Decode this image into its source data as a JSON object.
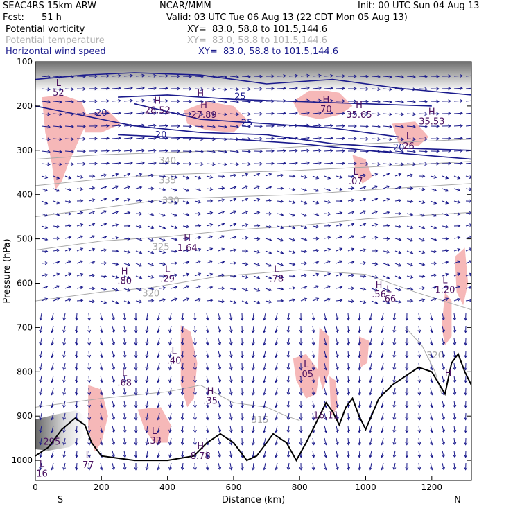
{
  "header": {
    "model": "SEAC4RS 15km ARW",
    "org": "NCAR/MMM",
    "init": "Init: 00 UTC Sun 04 Aug 13",
    "fcst_label": "Fcst:",
    "fcst_value": "51 h",
    "valid": "Valid: 03 UTC Tue 06 Aug 13 (22 CDT Mon 05 Aug 13)",
    "fields": [
      {
        "name": "Potential vorticity",
        "xy": "XY=  83.0, 58.8 to 101.5,144.6",
        "color": "#000000"
      },
      {
        "name": "Potential temperature",
        "xy": "XY=  83.0, 58.8 to 101.5,144.6",
        "color": "#b0b0b0"
      },
      {
        "name": "Horizontal wind speed",
        "xy": "XY=  83.0, 58.8 to 101.5,144.6",
        "color": "#1a1a8c"
      }
    ]
  },
  "colors": {
    "pv_shade": "#f6b8b8",
    "wind": "#1a1a8c",
    "theta": "#a8a8a8",
    "terrain": "#000000",
    "pv_contour": "#4a1060"
  },
  "chart_data": {
    "type": "cross-section",
    "xlabel": "Distance (km)",
    "ylabel": "Pressure (hPa)",
    "x_range": [
      0,
      1320
    ],
    "y_range": [
      100,
      1050
    ],
    "x_ticks": [
      0,
      200,
      400,
      600,
      800,
      1000,
      1200
    ],
    "y_ticks": [
      100,
      200,
      300,
      400,
      500,
      600,
      700,
      800,
      900,
      1000
    ],
    "x_end_labels": {
      "left": "S",
      "right": "N"
    },
    "theta_contours": [
      {
        "label": "340",
        "points": [
          [
            0,
            320
          ],
          [
            200,
            310
          ],
          [
            400,
            305
          ],
          [
            600,
            300
          ],
          [
            800,
            292
          ],
          [
            1000,
            285
          ],
          [
            1320,
            275
          ]
        ],
        "label_at": [
          400,
          330
        ]
      },
      {
        "label": "335",
        "points": [
          [
            0,
            380
          ],
          [
            200,
            365
          ],
          [
            400,
            355
          ],
          [
            600,
            350
          ],
          [
            800,
            345
          ],
          [
            1000,
            338
          ],
          [
            1320,
            325
          ]
        ],
        "label_at": [
          400,
          375
        ]
      },
      {
        "label": "330",
        "points": [
          [
            0,
            450
          ],
          [
            200,
            430
          ],
          [
            400,
            410
          ],
          [
            600,
            405
          ],
          [
            800,
            400
          ],
          [
            1000,
            390
          ],
          [
            1320,
            375
          ]
        ],
        "label_at": [
          410,
          420
        ]
      },
      {
        "label": "325",
        "points": [
          [
            0,
            525
          ],
          [
            200,
            505
          ],
          [
            400,
            495
          ],
          [
            600,
            480
          ],
          [
            800,
            470
          ],
          [
            1000,
            455
          ],
          [
            1320,
            440
          ]
        ],
        "label_at": [
          380,
          525
        ]
      },
      {
        "label": "320",
        "points": [
          [
            0,
            640
          ],
          [
            200,
            620
          ],
          [
            350,
            610
          ],
          [
            550,
            585
          ],
          [
            800,
            570
          ],
          [
            1000,
            580
          ],
          [
            1150,
            620
          ],
          [
            1320,
            660
          ]
        ],
        "label_at": [
          350,
          630
        ]
      },
      {
        "label": "315",
        "points": [
          [
            0,
            880
          ],
          [
            200,
            860
          ],
          [
            400,
            845
          ],
          [
            500,
            830
          ],
          [
            600,
            870
          ],
          [
            700,
            880
          ],
          [
            760,
            900
          ],
          [
            800,
            910
          ]
        ],
        "label_at": [
          680,
          915
        ]
      },
      {
        "label": "320",
        "points": [
          [
            1120,
            700
          ],
          [
            1170,
            740
          ],
          [
            1210,
            800
          ],
          [
            1230,
            850
          ]
        ],
        "label_at": [
          1210,
          770
        ]
      }
    ],
    "wind_speed_contours": [
      {
        "label": "20",
        "points": [
          [
            0,
            200
          ],
          [
            100,
            215
          ],
          [
            200,
            230
          ],
          [
            300,
            245
          ],
          [
            500,
            260
          ],
          [
            700,
            265
          ],
          [
            900,
            285
          ],
          [
            1100,
            295
          ],
          [
            1320,
            300
          ]
        ],
        "label_at": [
          200,
          222
        ]
      },
      {
        "label": "20",
        "points": [
          [
            250,
            265
          ],
          [
            400,
            270
          ],
          [
            600,
            275
          ],
          [
            800,
            285
          ],
          [
            1000,
            300
          ],
          [
            1320,
            320
          ]
        ],
        "label_at": [
          380,
          272
        ]
      },
      {
        "label": "25",
        "points": [
          [
            250,
            180
          ],
          [
            400,
            175
          ],
          [
            600,
            185
          ],
          [
            800,
            190
          ],
          [
            1000,
            195
          ],
          [
            1200,
            200
          ]
        ],
        "label_at": [
          620,
          185
        ]
      },
      {
        "label": "25",
        "points": [
          [
            300,
            195
          ],
          [
            500,
            230
          ],
          [
            700,
            240
          ],
          [
            900,
            250
          ],
          [
            1100,
            270
          ]
        ],
        "label_at": [
          640,
          245
        ]
      },
      {
        "label": "20",
        "points": [
          [
            0,
            140
          ],
          [
            150,
            130
          ],
          [
            300,
            125
          ],
          [
            500,
            130
          ],
          [
            700,
            150
          ],
          [
            900,
            140
          ],
          [
            1100,
            160
          ],
          [
            1320,
            175
          ]
        ],
        "label_at": [
          1100,
          300
        ]
      }
    ],
    "pv_shaded_regions": [
      {
        "points": [
          [
            20,
            180
          ],
          [
            80,
            175
          ],
          [
            140,
            190
          ],
          [
            160,
            230
          ],
          [
            130,
            280
          ],
          [
            100,
            330
          ],
          [
            80,
            370
          ],
          [
            60,
            390
          ],
          [
            50,
            330
          ],
          [
            30,
            260
          ]
        ]
      },
      {
        "points": [
          [
            140,
            220
          ],
          [
            220,
            210
          ],
          [
            260,
            240
          ],
          [
            200,
            260
          ],
          [
            150,
            260
          ]
        ]
      },
      {
        "points": [
          [
            450,
            210
          ],
          [
            520,
            190
          ],
          [
            600,
            200
          ],
          [
            640,
            230
          ],
          [
            600,
            260
          ],
          [
            520,
            255
          ],
          [
            460,
            240
          ]
        ]
      },
      {
        "points": [
          [
            780,
            190
          ],
          [
            840,
            160
          ],
          [
            920,
            170
          ],
          [
            960,
            200
          ],
          [
            920,
            220
          ],
          [
            860,
            230
          ],
          [
            800,
            220
          ]
        ]
      },
      {
        "points": [
          [
            1080,
            240
          ],
          [
            1150,
            235
          ],
          [
            1190,
            270
          ],
          [
            1160,
            290
          ],
          [
            1100,
            285
          ]
        ]
      },
      {
        "points": [
          [
            960,
            310
          ],
          [
            1000,
            320
          ],
          [
            1020,
            360
          ],
          [
            990,
            375
          ],
          [
            970,
            350
          ]
        ]
      },
      {
        "points": [
          [
            1270,
            540
          ],
          [
            1300,
            520
          ],
          [
            1310,
            600
          ],
          [
            1295,
            650
          ],
          [
            1275,
            620
          ]
        ]
      },
      {
        "points": [
          [
            1240,
            620
          ],
          [
            1260,
            640
          ],
          [
            1260,
            720
          ],
          [
            1240,
            740
          ],
          [
            1230,
            700
          ]
        ]
      },
      {
        "points": [
          [
            440,
            695
          ],
          [
            470,
            710
          ],
          [
            490,
            780
          ],
          [
            480,
            860
          ],
          [
            460,
            880
          ],
          [
            440,
            830
          ]
        ]
      },
      {
        "points": [
          [
            160,
            830
          ],
          [
            200,
            840
          ],
          [
            220,
            900
          ],
          [
            200,
            960
          ],
          [
            180,
            980
          ],
          [
            160,
            930
          ]
        ]
      },
      {
        "points": [
          [
            310,
            885
          ],
          [
            380,
            880
          ],
          [
            410,
            920
          ],
          [
            400,
            960
          ],
          [
            360,
            960
          ],
          [
            330,
            930
          ]
        ]
      },
      {
        "points": [
          [
            780,
            770
          ],
          [
            820,
            760
          ],
          [
            860,
            800
          ],
          [
            850,
            850
          ],
          [
            820,
            860
          ],
          [
            790,
            820
          ]
        ]
      },
      {
        "points": [
          [
            860,
            700
          ],
          [
            890,
            720
          ],
          [
            890,
            800
          ],
          [
            870,
            840
          ],
          [
            855,
            800
          ]
        ]
      },
      {
        "points": [
          [
            980,
            720
          ],
          [
            1010,
            730
          ],
          [
            1005,
            780
          ],
          [
            985,
            790
          ]
        ]
      },
      {
        "points": [
          [
            890,
            810
          ],
          [
            910,
            820
          ],
          [
            915,
            880
          ],
          [
            895,
            900
          ]
        ]
      }
    ],
    "terrain": [
      [
        0,
        990
      ],
      [
        40,
        970
      ],
      [
        80,
        930
      ],
      [
        120,
        905
      ],
      [
        150,
        920
      ],
      [
        170,
        960
      ],
      [
        200,
        990
      ],
      [
        300,
        1000
      ],
      [
        400,
        1000
      ],
      [
        480,
        990
      ],
      [
        520,
        960
      ],
      [
        560,
        940
      ],
      [
        600,
        960
      ],
      [
        640,
        1000
      ],
      [
        670,
        990
      ],
      [
        700,
        960
      ],
      [
        720,
        940
      ],
      [
        760,
        960
      ],
      [
        790,
        1000
      ],
      [
        820,
        960
      ],
      [
        860,
        900
      ],
      [
        880,
        870
      ],
      [
        900,
        890
      ],
      [
        920,
        920
      ],
      [
        940,
        880
      ],
      [
        960,
        860
      ],
      [
        980,
        900
      ],
      [
        1000,
        930
      ],
      [
        1040,
        860
      ],
      [
        1080,
        830
      ],
      [
        1120,
        810
      ],
      [
        1160,
        790
      ],
      [
        1200,
        800
      ],
      [
        1240,
        850
      ],
      [
        1260,
        780
      ],
      [
        1280,
        760
      ],
      [
        1300,
        800
      ],
      [
        1320,
        830
      ]
    ],
    "pv_maxima": [
      {
        "type": "H",
        "value": "",
        "at": [
          500,
          178
        ]
      },
      {
        "type": "H",
        "value": "28.52",
        "at": [
          370,
          195
        ]
      },
      {
        "type": "H",
        "value": "27.89",
        "at": [
          510,
          205
        ]
      },
      {
        "type": "H",
        "value": "70",
        "at": [
          880,
          192
        ]
      },
      {
        "type": "H",
        "value": "35.65",
        "at": [
          980,
          205
        ]
      },
      {
        "type": "H",
        "value": "35.53",
        "at": [
          1200,
          220
        ]
      },
      {
        "type": "L",
        "value": "52",
        "at": [
          70,
          155
        ]
      },
      {
        "type": "L",
        "value": "26",
        "at": [
          1130,
          275
        ]
      },
      {
        "type": "L",
        "value": ".07",
        "at": [
          970,
          355
        ]
      },
      {
        "type": "H",
        "value": "1.64",
        "at": [
          460,
          505
        ]
      },
      {
        "type": "H",
        "value": ".80",
        "at": [
          270,
          580
        ]
      },
      {
        "type": "L",
        "value": ".29",
        "at": [
          400,
          575
        ]
      },
      {
        "type": "L",
        "value": ".78",
        "at": [
          730,
          575
        ]
      },
      {
        "type": "H",
        "value": ".56",
        "at": [
          1040,
          610
        ]
      },
      {
        "type": "L",
        "value": ".66",
        "at": [
          1070,
          620
        ]
      },
      {
        "type": "L",
        "value": "1.20",
        "at": [
          1240,
          600
        ]
      },
      {
        "type": "L",
        "value": ".40",
        "at": [
          420,
          760
        ]
      },
      {
        "type": "L",
        "value": ".68",
        "at": [
          270,
          810
        ]
      },
      {
        "type": "H",
        "value": ".35",
        "at": [
          530,
          850
        ]
      },
      {
        "type": "L",
        "value": ".05",
        "at": [
          820,
          790
        ]
      },
      {
        "type": "H",
        "value": "",
        "at": [
          1250,
          810
        ]
      },
      {
        "type": "L",
        "value": ".33",
        "at": [
          360,
          940
        ]
      },
      {
        "type": "H",
        "value": "8.78",
        "at": [
          500,
          975
        ]
      },
      {
        "type": "L",
        "value": "77",
        "at": [
          160,
          995
        ]
      },
      {
        "type": "L",
        "value": "16",
        "at": [
          20,
          1015
        ]
      },
      {
        "type": "",
        "value": "16.11",
        "at": [
          880,
          905
        ]
      },
      {
        "type": "",
        "value": "295",
        "at": [
          50,
          965
        ]
      }
    ]
  }
}
